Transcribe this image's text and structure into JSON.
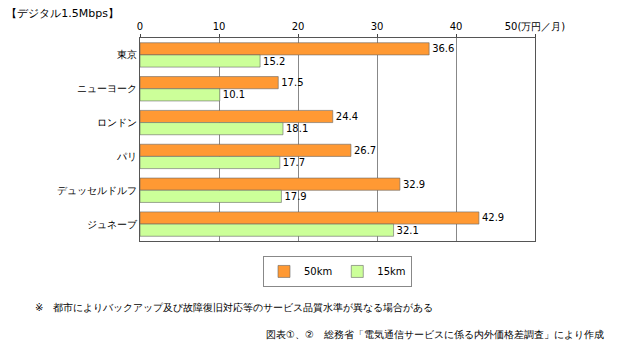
{
  "chart_data": {
    "type": "bar",
    "orientation": "horizontal",
    "subtitle": "【デジタル1.5Mbps】",
    "categories": [
      "東京",
      "ニューヨーク",
      "ロンドン",
      "パリ",
      "デュッセルドルフ",
      "ジュネーブ"
    ],
    "series": [
      {
        "name": "50km",
        "color": "#ff9933",
        "values": [
          36.6,
          17.5,
          24.4,
          26.7,
          32.9,
          42.9
        ]
      },
      {
        "name": "15km",
        "color": "#ccff99",
        "values": [
          15.2,
          10.1,
          18.1,
          17.7,
          17.9,
          32.1
        ]
      }
    ],
    "xlim": [
      0,
      50
    ],
    "xticks": [
      0,
      10,
      20,
      30,
      40,
      {
        "value": 50,
        "label": "50(万円／月)"
      }
    ],
    "grid": true,
    "legend": "bottom",
    "data_labels": true,
    "annotations": [
      "※　都市によりバックアップ及び故障復旧対応等のサービス品質水準が異なる場合がある",
      "図表①、②　総務省「電気通信サービスに係る内外価格差調査」により作成"
    ]
  }
}
